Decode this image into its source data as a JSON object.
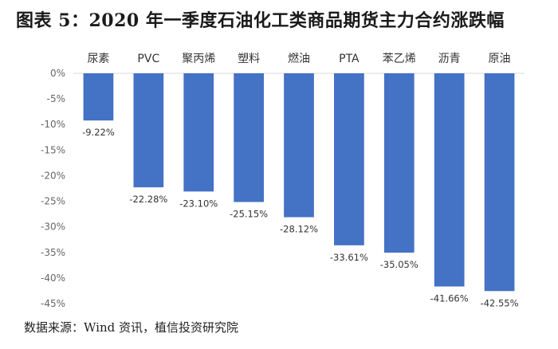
{
  "title": "图表 5：2020 年一季度石油化工类商品期货主力合约涨跌幅",
  "source": "数据来源：Wind 资讯，植信投资研究院",
  "chart_data": {
    "type": "bar",
    "categories": [
      "尿素",
      "PVC",
      "聚丙烯",
      "塑料",
      "燃油",
      "PTA",
      "苯乙烯",
      "沥青",
      "原油"
    ],
    "values": [
      -9.22,
      -22.28,
      -23.1,
      -25.15,
      -28.12,
      -33.61,
      -35.05,
      -41.66,
      -42.55
    ],
    "data_labels": [
      "-9.22%",
      "-22.28%",
      "-23.10%",
      "-25.15%",
      "-28.12%",
      "-33.61%",
      "-35.05%",
      "-41.66%",
      "-42.55%"
    ],
    "y_ticks": [
      0,
      -5,
      -10,
      -15,
      -20,
      -25,
      -30,
      -35,
      -40,
      -45
    ],
    "y_tick_labels": [
      "0%",
      "-5%",
      "-10%",
      "-15%",
      "-20%",
      "-25%",
      "-30%",
      "-35%",
      "-40%",
      "-45%"
    ],
    "ylim": [
      -45,
      0
    ],
    "bar_color": "#4472C4",
    "grid": false,
    "legend": "none"
  }
}
